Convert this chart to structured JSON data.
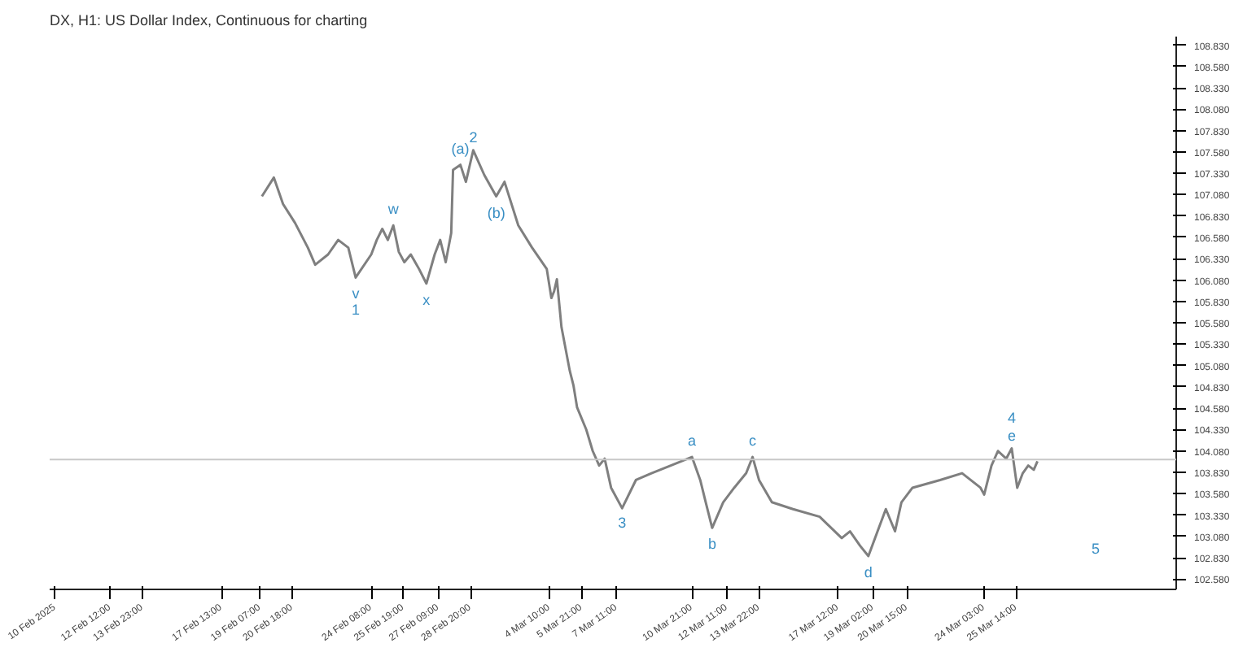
{
  "chart_data": {
    "type": "line",
    "title": "DX, H1: US Dollar Index, Continuous for charting",
    "x": [
      "2025-02-19T09:00",
      "2025-02-19T22:00",
      "2025-02-20T08:00",
      "2025-02-20T21:00",
      "2025-02-21T11:00",
      "2025-02-21T19:00",
      "2025-02-22T09:00",
      "2025-02-22T20:00",
      "2025-02-23T07:00",
      "2025-02-23T15:00",
      "2025-02-24T08:00",
      "2025-02-24T14:00",
      "2025-02-24T20:00",
      "2025-02-25T02:00",
      "2025-02-25T08:00",
      "2025-02-25T14:00",
      "2025-02-25T20:00",
      "2025-02-26T03:00",
      "2025-02-26T12:00",
      "2025-02-26T20:00",
      "2025-02-27T05:00",
      "2025-02-27T11:00",
      "2025-02-27T17:00",
      "2025-02-27T23:00",
      "2025-02-28T01:00",
      "2025-02-28T09:00",
      "2025-02-28T15:00",
      "2025-02-28T23:00",
      "2025-03-01T11:00",
      "2025-03-02T00:00",
      "2025-03-02T09:00",
      "2025-03-03T00:00",
      "2025-03-03T15:00",
      "2025-03-04T07:00",
      "2025-03-04T12:00",
      "2025-03-04T15:00",
      "2025-03-04T18:00",
      "2025-03-04T23:00",
      "2025-03-05T08:00",
      "2025-03-05T12:00",
      "2025-03-05T16:00",
      "2025-03-06T02:00",
      "2025-03-06T09:00",
      "2025-03-06T16:00",
      "2025-03-06T22:00",
      "2025-03-07T05:00",
      "2025-03-07T17:00",
      "2025-03-08T08:00",
      "2025-03-09T01:00",
      "2025-03-09T22:00",
      "2025-03-10T21:00",
      "2025-03-11T06:00",
      "2025-03-11T12:00",
      "2025-03-11T19:00",
      "2025-03-12T07:00",
      "2025-03-12T19:00",
      "2025-03-13T08:00",
      "2025-03-13T15:00",
      "2025-03-13T22:00",
      "2025-03-14T12:00",
      "2025-03-15T11:00",
      "2025-03-16T16:00",
      "2025-03-17T16:00",
      "2025-03-18T01:00",
      "2025-03-18T12:00",
      "2025-03-18T21:00",
      "2025-03-19T07:00",
      "2025-03-19T16:00",
      "2025-03-20T02:00",
      "2025-03-20T09:00",
      "2025-03-20T21:00",
      "2025-03-22T03:00",
      "2025-03-23T03:00",
      "2025-03-23T23:00",
      "2025-03-24T03:00",
      "2025-03-24T11:00",
      "2025-03-24T18:00",
      "2025-03-25T03:00",
      "2025-03-25T09:00",
      "2025-03-25T15:00",
      "2025-03-25T21:00",
      "2025-03-26T03:00",
      "2025-03-26T09:00",
      "2025-03-26T13:00"
    ],
    "series": [
      {
        "color": "#7f7f7f",
        "values": [
          107.06,
          107.28,
          106.97,
          106.75,
          106.46,
          106.26,
          106.38,
          106.55,
          106.46,
          106.11,
          106.38,
          106.55,
          106.68,
          106.55,
          106.72,
          106.41,
          106.29,
          106.38,
          106.21,
          106.04,
          106.38,
          106.55,
          106.29,
          106.63,
          107.37,
          107.43,
          107.23,
          107.6,
          107.31,
          107.06,
          107.23,
          106.72,
          106.46,
          106.21,
          105.87,
          105.95,
          106.09,
          105.53,
          105.02,
          104.85,
          104.59,
          104.33,
          104.08,
          103.91,
          103.99,
          103.65,
          103.41,
          103.74,
          103.82,
          103.91,
          104.01,
          103.74,
          103.48,
          103.18,
          103.48,
          103.65,
          103.82,
          104.01,
          103.74,
          103.48,
          103.4,
          103.31,
          103.06,
          103.14,
          102.97,
          102.85,
          103.14,
          103.4,
          103.14,
          103.48,
          103.65,
          103.74,
          103.82,
          103.65,
          103.57,
          103.91,
          104.08,
          103.99,
          104.11,
          103.65,
          103.82,
          103.91,
          103.86,
          103.96
        ]
      }
    ],
    "xlim": [
      "2025-02-09T18:00",
      "2025-04-01T20:00"
    ],
    "ylim": [
      102.46,
      108.93
    ],
    "xticks": [
      {
        "value": "2025-02-10T00:00",
        "label": "10 Feb 2025"
      },
      {
        "value": "2025-02-12T12:00",
        "label": "12 Feb 12:00"
      },
      {
        "value": "2025-02-13T23:00",
        "label": "13 Feb 23:00"
      },
      {
        "value": "2025-02-17T13:00",
        "label": "17 Feb 13:00"
      },
      {
        "value": "2025-02-19T07:00",
        "label": "19 Feb 07:00"
      },
      {
        "value": "2025-02-20T18:00",
        "label": "20 Feb 18:00"
      },
      {
        "value": "2025-02-24T08:00",
        "label": "24 Feb 08:00"
      },
      {
        "value": "2025-02-25T19:00",
        "label": "25 Feb 19:00"
      },
      {
        "value": "2025-02-27T09:00",
        "label": "27 Feb 09:00"
      },
      {
        "value": "2025-02-28T20:00",
        "label": "28 Feb 20:00"
      },
      {
        "value": "2025-03-04T10:00",
        "label": "4 Mar 10:00"
      },
      {
        "value": "2025-03-05T21:00",
        "label": "5 Mar 21:00"
      },
      {
        "value": "2025-03-07T11:00",
        "label": "7 Mar 11:00"
      },
      {
        "value": "2025-03-10T21:00",
        "label": "10 Mar 21:00"
      },
      {
        "value": "2025-03-12T11:00",
        "label": "12 Mar 11:00"
      },
      {
        "value": "2025-03-13T22:00",
        "label": "13 Mar 22:00"
      },
      {
        "value": "2025-03-17T12:00",
        "label": "17 Mar 12:00"
      },
      {
        "value": "2025-03-19T02:00",
        "label": "19 Mar 02:00"
      },
      {
        "value": "2025-03-20T15:00",
        "label": "20 Mar 15:00"
      },
      {
        "value": "2025-03-24T03:00",
        "label": "24 Mar 03:00"
      },
      {
        "value": "2025-03-25T14:00",
        "label": "25 Mar 14:00"
      }
    ],
    "yticks": [
      {
        "value": 102.58,
        "label": "102.580"
      },
      {
        "value": 102.83,
        "label": "102.830"
      },
      {
        "value": 103.08,
        "label": "103.080"
      },
      {
        "value": 103.33,
        "label": "103.330"
      },
      {
        "value": 103.58,
        "label": "103.580"
      },
      {
        "value": 103.83,
        "label": "103.830"
      },
      {
        "value": 104.08,
        "label": "104.080"
      },
      {
        "value": 104.33,
        "label": "104.330"
      },
      {
        "value": 104.58,
        "label": "104.580"
      },
      {
        "value": 104.83,
        "label": "104.830"
      },
      {
        "value": 105.08,
        "label": "105.080"
      },
      {
        "value": 105.33,
        "label": "105.330"
      },
      {
        "value": 105.58,
        "label": "105.580"
      },
      {
        "value": 105.83,
        "label": "105.830"
      },
      {
        "value": 106.08,
        "label": "106.080"
      },
      {
        "value": 106.33,
        "label": "106.330"
      },
      {
        "value": 106.58,
        "label": "106.580"
      },
      {
        "value": 106.83,
        "label": "106.830"
      },
      {
        "value": 107.08,
        "label": "107.080"
      },
      {
        "value": 107.33,
        "label": "107.330"
      },
      {
        "value": 107.58,
        "label": "107.580"
      },
      {
        "value": 107.83,
        "label": "107.830"
      },
      {
        "value": 108.08,
        "label": "108.080"
      },
      {
        "value": 108.33,
        "label": "108.330"
      },
      {
        "value": 108.58,
        "label": "108.580"
      },
      {
        "value": 108.83,
        "label": "108.830"
      }
    ],
    "ref_lines": [
      {
        "axis": "y",
        "value": 103.98,
        "color": "#c8c8c8"
      }
    ],
    "annotations": [
      {
        "text": "v",
        "x": "2025-02-23T15:00",
        "y": 106.11
      },
      {
        "text": "1",
        "x": "2025-02-23T15:00",
        "y": 106.11
      },
      {
        "text": "2",
        "x": "2025-02-28T23:00",
        "y": 107.6
      },
      {
        "text": "3",
        "x": "2025-03-07T17:00",
        "y": 103.41
      },
      {
        "text": "e",
        "x": "2025-03-25T09:00",
        "y": 104.11
      },
      {
        "text": "4",
        "x": "2025-03-25T09:00",
        "y": 104.11
      },
      "5",
      {
        "text": "a",
        "x": "2025-03-10T21:00",
        "y": 104.01
      },
      {
        "text": "b",
        "x": "2025-03-11T19:00",
        "y": 103.18
      },
      {
        "text": "c",
        "x": "2025-03-13T15:00",
        "y": 104.01
      },
      {
        "text": "d",
        "x": "2025-03-18T21:00",
        "y": 102.85
      },
      {
        "text": "(a)",
        "x": "2025-02-28T09:00",
        "y": 107.43
      },
      {
        "text": "(b)",
        "x": "2025-03-02T00:00",
        "y": 107.06
      },
      {
        "text": "w",
        "x": "2025-02-25T08:00",
        "y": 106.72
      },
      {
        "text": "x",
        "x": "2025-02-26T20:00",
        "y": 106.04
      }
    ]
  }
}
